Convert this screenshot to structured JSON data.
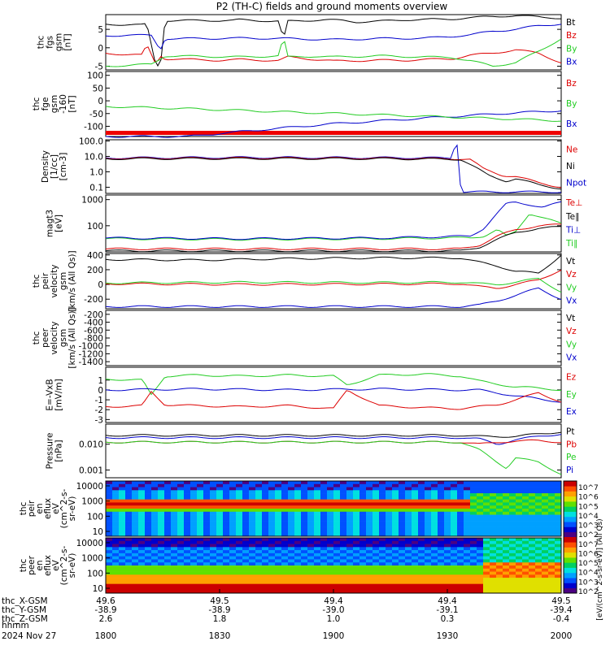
{
  "title": "P2 (TH-C) fields and ground moments overview",
  "colors": {
    "black": "#000000",
    "red": "#dd0000",
    "green": "#22cc22",
    "blue": "#0000cc"
  },
  "chart_data": {
    "type": "line",
    "time_axis": {
      "label": "hhmm",
      "date": "2024 Nov 27",
      "ticks": [
        "1800",
        "1830",
        "1900",
        "1930",
        "2000"
      ]
    },
    "ephemeris": [
      {
        "label": "thc_X-GSM",
        "values": [
          "49.6",
          "49.5",
          "49.4",
          "49.4",
          "49.5"
        ]
      },
      {
        "label": "thc_Y-GSM",
        "values": [
          "-38.9",
          "-38.9",
          "-39.0",
          "-39.1",
          "-39.4"
        ]
      },
      {
        "label": "thc_Z-GSM",
        "values": [
          "2.6",
          "1.8",
          "1.0",
          "0.3",
          "-0.4"
        ]
      }
    ],
    "panels": [
      {
        "key": "fgs",
        "ylabel": [
          "thc",
          "fgs",
          "gsm",
          "[nT]"
        ],
        "yticks": [
          "5",
          "0",
          "-5"
        ],
        "ylim": [
          -6,
          9
        ],
        "scale": "linear",
        "legend": [
          "Bt",
          "Bz",
          "By",
          "Bx"
        ],
        "series": [
          {
            "name": "Bt",
            "color": "#000000",
            "t": [
              0,
              0.08,
              0.09,
              0.11,
              0.12,
              0.13,
              0.28,
              0.29,
              0.38,
              0.39,
              0.4,
              0.48,
              0.52,
              0.55,
              0.6,
              0.66,
              0.72,
              0.76,
              0.78,
              0.85,
              0.9,
              0.97,
              1
            ],
            "v": [
              6.4,
              6.2,
              6.4,
              -4.8,
              -4.8,
              7.4,
              7.4,
              7.6,
              7.2,
              2,
              7.2,
              7.6,
              7.4,
              7,
              7.2,
              7.6,
              7.7,
              7.8,
              8,
              8.5,
              8.7,
              8.3,
              8
            ]
          },
          {
            "name": "Bz",
            "color": "#dd0000",
            "t": [
              0,
              0.08,
              0.09,
              0.11,
              0.12,
              0.13,
              0.25,
              0.3,
              0.38,
              0.4,
              0.5,
              0.6,
              0.66,
              0.7,
              0.76,
              0.8,
              0.85,
              0.9,
              0.95,
              1
            ],
            "v": [
              -1.5,
              -2,
              0.8,
              -4.5,
              -2,
              -3,
              -3.4,
              -3.2,
              -3.5,
              -2.5,
              -3.6,
              -3.4,
              -3.4,
              -3.2,
              -3,
              -2,
              -1.5,
              -0.5,
              -1.5,
              -4
            ]
          },
          {
            "name": "By",
            "color": "#22cc22",
            "t": [
              0,
              0.1,
              0.12,
              0.13,
              0.3,
              0.38,
              0.39,
              0.4,
              0.46,
              0.5,
              0.6,
              0.7,
              0.76,
              0.8,
              0.85,
              0.9,
              0.95,
              1
            ],
            "v": [
              -5,
              -4.5,
              -3,
              -2.2,
              -2.5,
              -2.2,
              3,
              -2.5,
              -2.3,
              -2.5,
              -2.2,
              -2.5,
              -2.6,
              -3.5,
              -5,
              -4,
              -1,
              2.5
            ]
          },
          {
            "name": "Bx",
            "color": "#0000cc",
            "t": [
              0,
              0.05,
              0.1,
              0.12,
              0.13,
              0.2,
              0.3,
              0.4,
              0.5,
              0.6,
              0.7,
              0.75,
              0.8,
              0.85,
              0.9,
              0.95,
              1
            ],
            "v": [
              3.2,
              3.5,
              3.3,
              -0.5,
              2.5,
              2.5,
              2.6,
              2.5,
              2.2,
              2.5,
              2.6,
              3,
              3.5,
              4.5,
              5,
              6,
              6.5
            ]
          }
        ]
      },
      {
        "key": "fge",
        "ylabel": [
          "thc",
          "fge",
          "gsm",
          "-160",
          "[nT]"
        ],
        "yticks": [
          "100",
          "50",
          "0",
          "-50",
          "-100"
        ],
        "ylim": [
          -140,
          115
        ],
        "scale": "linear",
        "legend": [
          "Bz",
          "By",
          "Bx"
        ],
        "flag_bar": true,
        "series": [
          {
            "name": "Bx",
            "color": "#0000cc",
            "t": [
              0,
              0.18,
              0.3,
              0.5,
              0.7,
              0.85,
              1
            ],
            "v": [
              -140,
              -140,
              -120,
              -90,
              -68,
              -52,
              -38
            ]
          },
          {
            "name": "By",
            "color": "#22cc22",
            "t": [
              0,
              0.2,
              0.4,
              0.6,
              0.8,
              1
            ],
            "v": [
              -22,
              -32,
              -44,
              -55,
              -66,
              -78
            ]
          }
        ]
      },
      {
        "key": "density",
        "ylabel": [
          "Density",
          "[1/cc]",
          "[cm-3]"
        ],
        "yticks": [
          "100.0",
          "10.0",
          "1.0",
          "0.1"
        ],
        "ylim": [
          0.04,
          120
        ],
        "scale": "log",
        "legend": [
          "Ne",
          "Ni",
          "Npot"
        ],
        "series": [
          {
            "name": "Npot",
            "color": "#0000cc",
            "t": [
              0,
              0.3,
              0.6,
              0.76,
              0.77,
              0.78,
              0.9,
              1
            ],
            "v": [
              8,
              8.5,
              8.2,
              8,
              200,
              0.05,
              0.05,
              0.05
            ]
          },
          {
            "name": "Ne",
            "color": "#dd0000",
            "t": [
              0,
              0.3,
              0.6,
              0.78,
              0.8,
              0.83,
              0.87,
              0.9,
              0.95,
              1
            ],
            "v": [
              7.5,
              7.8,
              7.6,
              7,
              6.5,
              1.5,
              0.6,
              0.5,
              0.2,
              0.1
            ]
          },
          {
            "name": "Ni",
            "color": "#000000",
            "t": [
              0,
              0.3,
              0.6,
              0.78,
              0.81,
              0.84,
              0.88,
              0.9,
              0.95,
              1
            ],
            "v": [
              7,
              7.2,
              7.1,
              6.5,
              2,
              0.6,
              0.25,
              0.35,
              0.15,
              0.08
            ]
          }
        ]
      },
      {
        "key": "temp",
        "ylabel": [
          "magt3",
          "[eV]"
        ],
        "yticks": [
          "1000",
          "100"
        ],
        "ylim": [
          10,
          1500
        ],
        "scale": "log",
        "legend": [
          "Te⊥",
          "Te∥",
          "Ti⊥",
          "Ti∥"
        ],
        "series": [
          {
            "name": "Ti∥",
            "color": "#22cc22",
            "t": [
              0,
              0.3,
              0.6,
              0.8,
              0.83,
              0.86,
              0.88,
              0.9,
              0.93,
              0.96,
              1
            ],
            "v": [
              32,
              30,
              32,
              35,
              40,
              70,
              40,
              60,
              300,
              200,
              120
            ]
          },
          {
            "name": "Ti⊥",
            "color": "#0000cc",
            "t": [
              0,
              0.3,
              0.6,
              0.8,
              0.83,
              0.86,
              0.88,
              0.9,
              0.93,
              0.96,
              1
            ],
            "v": [
              34,
              32,
              34,
              40,
              80,
              300,
              700,
              800,
              650,
              500,
              800
            ]
          },
          {
            "name": "Te⊥",
            "color": "#dd0000",
            "t": [
              0,
              0.3,
              0.6,
              0.78,
              0.82,
              0.86,
              0.9,
              0.95,
              1
            ],
            "v": [
              13,
              13,
              13,
              13,
              18,
              40,
              70,
              100,
              110
            ]
          },
          {
            "name": "Te∥",
            "color": "#000000",
            "t": [
              0,
              0.3,
              0.6,
              0.78,
              0.82,
              0.86,
              0.9,
              0.95,
              1
            ],
            "v": [
              11,
              11,
              11,
              11,
              15,
              30,
              55,
              80,
              90
            ]
          }
        ]
      },
      {
        "key": "peir",
        "ylabel": [
          "thc",
          "peir",
          "velocity",
          "gsm",
          "[km/s (All Qs)]"
        ],
        "yticks": [
          "400",
          "200",
          "0",
          "-200"
        ],
        "ylim": [
          -330,
          420
        ],
        "scale": "linear",
        "legend": [
          "Vt",
          "Vz",
          "Vy",
          "Vx"
        ],
        "series": [
          {
            "name": "Vt",
            "color": "#000000",
            "t": [
              0,
              0.2,
              0.4,
              0.6,
              0.78,
              0.82,
              0.86,
              0.9,
              0.95,
              1
            ],
            "v": [
              340,
              330,
              350,
              360,
              360,
              300,
              250,
              180,
              150,
              400
            ]
          },
          {
            "name": "Vz",
            "color": "#dd0000",
            "t": [
              0,
              0.3,
              0.6,
              0.78,
              0.82,
              0.86,
              0.9,
              0.95,
              1
            ],
            "v": [
              10,
              0,
              5,
              10,
              -30,
              -50,
              0,
              60,
              200
            ]
          },
          {
            "name": "Vy",
            "color": "#22cc22",
            "t": [
              0,
              0.3,
              0.6,
              0.78,
              0.82,
              0.86,
              0.9,
              0.95,
              1
            ],
            "v": [
              20,
              30,
              25,
              30,
              10,
              0,
              30,
              80,
              -100
            ]
          },
          {
            "name": "Vx",
            "color": "#0000cc",
            "t": [
              0,
              0.3,
              0.6,
              0.78,
              0.82,
              0.86,
              0.9,
              0.95,
              1
            ],
            "v": [
              -300,
              -300,
              -300,
              -300,
              -280,
              -220,
              -150,
              -50,
              -200
            ]
          }
        ]
      },
      {
        "key": "peer",
        "ylabel": [
          "thc",
          "peer",
          "velocity",
          "gsm",
          "[km/s (All Qs)]"
        ],
        "yticks": [
          "-200",
          "-400",
          "-600",
          "-800",
          "-1000",
          "-1200",
          "-1400"
        ],
        "ylim": [
          -1500,
          -100
        ],
        "scale": "linear",
        "legend": [
          "Vt",
          "Vz",
          "Vy",
          "Vx"
        ],
        "series": []
      },
      {
        "key": "efield",
        "ylabel": [
          "E=-VxB",
          "[mV/m]"
        ],
        "yticks": [
          "1",
          "0",
          "-1",
          "-2",
          "-3"
        ],
        "ylim": [
          -3.3,
          2.3
        ],
        "scale": "linear",
        "legend": [
          "Ez",
          "Ey",
          "Ex"
        ],
        "series": [
          {
            "name": "Ey",
            "color": "#22cc22",
            "t": [
              0,
              0.08,
              0.1,
              0.13,
              0.2,
              0.3,
              0.4,
              0.5,
              0.53,
              0.6,
              0.7,
              0.78,
              0.82,
              0.86,
              0.9,
              0.95,
              1
            ],
            "v": [
              1.1,
              1.0,
              -0.5,
              1.4,
              1.5,
              1.4,
              1.5,
              1.4,
              0.5,
              1.5,
              1.6,
              1.4,
              0.9,
              0.6,
              0.3,
              0.2,
              0
            ]
          },
          {
            "name": "Ex",
            "color": "#0000cc",
            "t": [
              0,
              0.2,
              0.4,
              0.6,
              0.78,
              0.82,
              0.86,
              0.9,
              0.95,
              1
            ],
            "v": [
              0,
              0.1,
              0,
              0.1,
              0,
              0,
              -0.3,
              -0.6,
              -0.9,
              -1.2
            ]
          },
          {
            "name": "Ez",
            "color": "#dd0000",
            "t": [
              0,
              0.08,
              0.1,
              0.13,
              0.2,
              0.3,
              0.4,
              0.5,
              0.53,
              0.6,
              0.7,
              0.78,
              0.82,
              0.86,
              0.9,
              0.95,
              1
            ],
            "v": [
              -1.7,
              -1.6,
              -0.2,
              -1.5,
              -1.6,
              -1.7,
              -1.6,
              -1.9,
              0,
              -1.6,
              -1.8,
              -1.9,
              -1.7,
              -1.5,
              -1.0,
              -0.3,
              -1.2
            ]
          }
        ]
      },
      {
        "key": "pressure",
        "ylabel": [
          "Pressure",
          "[nPa]"
        ],
        "yticks": [
          "0.010",
          "0.001"
        ],
        "ylim": [
          0.0005,
          0.06
        ],
        "scale": "log",
        "legend": [
          "Pt",
          "Pb",
          "Pe",
          "Pi"
        ],
        "series": [
          {
            "name": "Pt",
            "color": "#000000",
            "t": [
              0,
              0.3,
              0.6,
              0.78,
              0.82,
              0.86,
              0.9,
              0.95,
              1
            ],
            "v": [
              0.022,
              0.022,
              0.022,
              0.022,
              0.02,
              0.02,
              0.02,
              0.025,
              0.03
            ]
          },
          {
            "name": "Pi",
            "color": "#0000cc",
            "t": [
              0,
              0.3,
              0.6,
              0.78,
              0.82,
              0.86,
              0.9,
              0.95,
              1
            ],
            "v": [
              0.018,
              0.018,
              0.018,
              0.018,
              0.016,
              0.01,
              0.015,
              0.02,
              0.025
            ]
          },
          {
            "name": "Pb",
            "color": "#dd0000",
            "t": [
              0,
              0.3,
              0.6,
              0.78,
              0.82,
              0.86,
              0.9,
              0.95,
              1
            ],
            "v": [
              0.012,
              0.012,
              0.012,
              0.012,
              0.01,
              0.012,
              0.013,
              0.014,
              0.012
            ]
          },
          {
            "name": "Pe",
            "color": "#22cc22",
            "t": [
              0,
              0.3,
              0.6,
              0.78,
              0.82,
              0.86,
              0.88,
              0.9,
              0.95,
              1
            ],
            "v": [
              0.012,
              0.012,
              0.012,
              0.012,
              0.006,
              0.002,
              0.0012,
              0.003,
              0.002,
              0.0007
            ]
          }
        ]
      }
    ],
    "spectrograms": [
      {
        "key": "peir_spec",
        "ylabel": [
          "thc",
          "peir",
          "en",
          "eflux",
          "eV",
          "(cm^2-s-",
          "sr-eV)"
        ],
        "yticks": [
          "10000",
          "1000",
          "100",
          "10"
        ]
      },
      {
        "key": "peer_spec",
        "ylabel": [
          "thc",
          "peer",
          "en",
          "eflux",
          "eV",
          "(cm^2-s-",
          "sr-eV)"
        ],
        "yticks": [
          "10000",
          "1000",
          "100",
          "10"
        ]
      }
    ],
    "colorbar": {
      "label": "[eV/(cm^2-s-sr-eV)] (All Qs)",
      "ticks": [
        "10^7",
        "10^6",
        "10^5",
        "10^4",
        "10^3",
        "10^2",
        "10^7",
        "10^6",
        "10^5",
        "10^4",
        "10^3",
        "10^2"
      ]
    }
  }
}
